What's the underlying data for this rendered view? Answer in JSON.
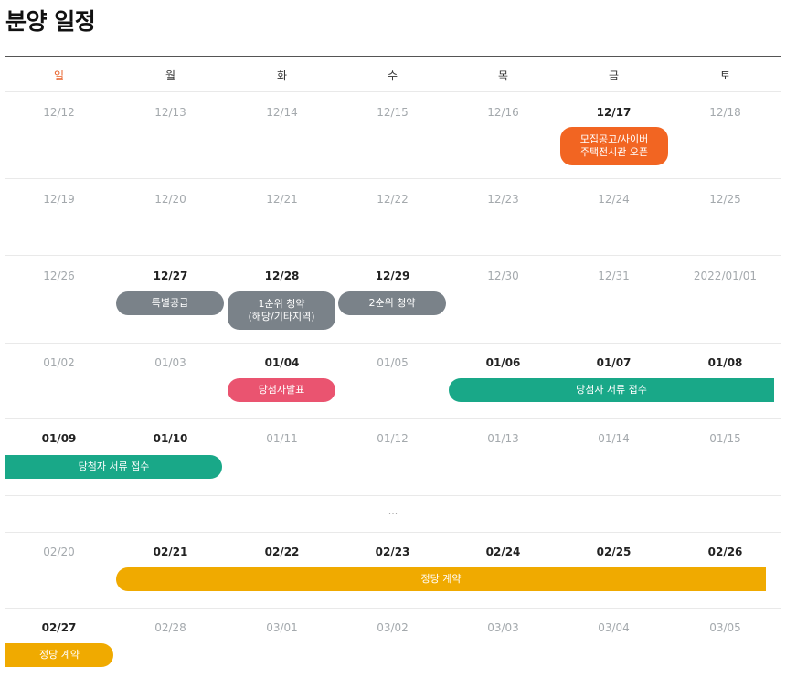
{
  "page": {
    "title": "분양 일정"
  },
  "weekdays": [
    "일",
    "월",
    "화",
    "수",
    "목",
    "금",
    "토"
  ],
  "weeks": [
    {
      "dates": [
        "12/12",
        "12/13",
        "12/14",
        "12/15",
        "12/16",
        "12/17",
        "12/18"
      ]
    },
    {
      "dates": [
        "12/19",
        "12/20",
        "12/21",
        "12/22",
        "12/23",
        "12/24",
        "12/25"
      ]
    },
    {
      "dates": [
        "12/26",
        "12/27",
        "12/28",
        "12/29",
        "12/30",
        "12/31",
        "2022/01/01"
      ]
    },
    {
      "dates": [
        "01/02",
        "01/03",
        "01/04",
        "01/05",
        "01/06",
        "01/07",
        "01/08"
      ]
    },
    {
      "dates": [
        "01/09",
        "01/10",
        "01/11",
        "01/12",
        "01/13",
        "01/14",
        "01/15"
      ]
    },
    {
      "dates": [
        "02/20",
        "02/21",
        "02/22",
        "02/23",
        "02/24",
        "02/25",
        "02/26"
      ]
    },
    {
      "dates": [
        "02/27",
        "02/28",
        "03/01",
        "03/02",
        "03/03",
        "03/04",
        "03/05"
      ]
    }
  ],
  "gap_marker": "...",
  "events": {
    "open": "모집공고/사이버\n주택전시관 오픈",
    "special": "특별공급",
    "first": "1순위 청약\n(해당/기타지역)",
    "second": "2순위 청약",
    "announce": "당첨자발표",
    "docs_a": "당첨자 서류 접수",
    "docs_b": "당첨자 서류 접수",
    "contract_a": "정당 계약",
    "contract_b": "정당 계약"
  },
  "colors": {
    "sunday": "#e8622a",
    "open_event": "#f26522",
    "subscription_event": "#7a8289",
    "announcement_event": "#ea5470",
    "documents_event": "#19a888",
    "contract_event": "#f0aa00"
  }
}
